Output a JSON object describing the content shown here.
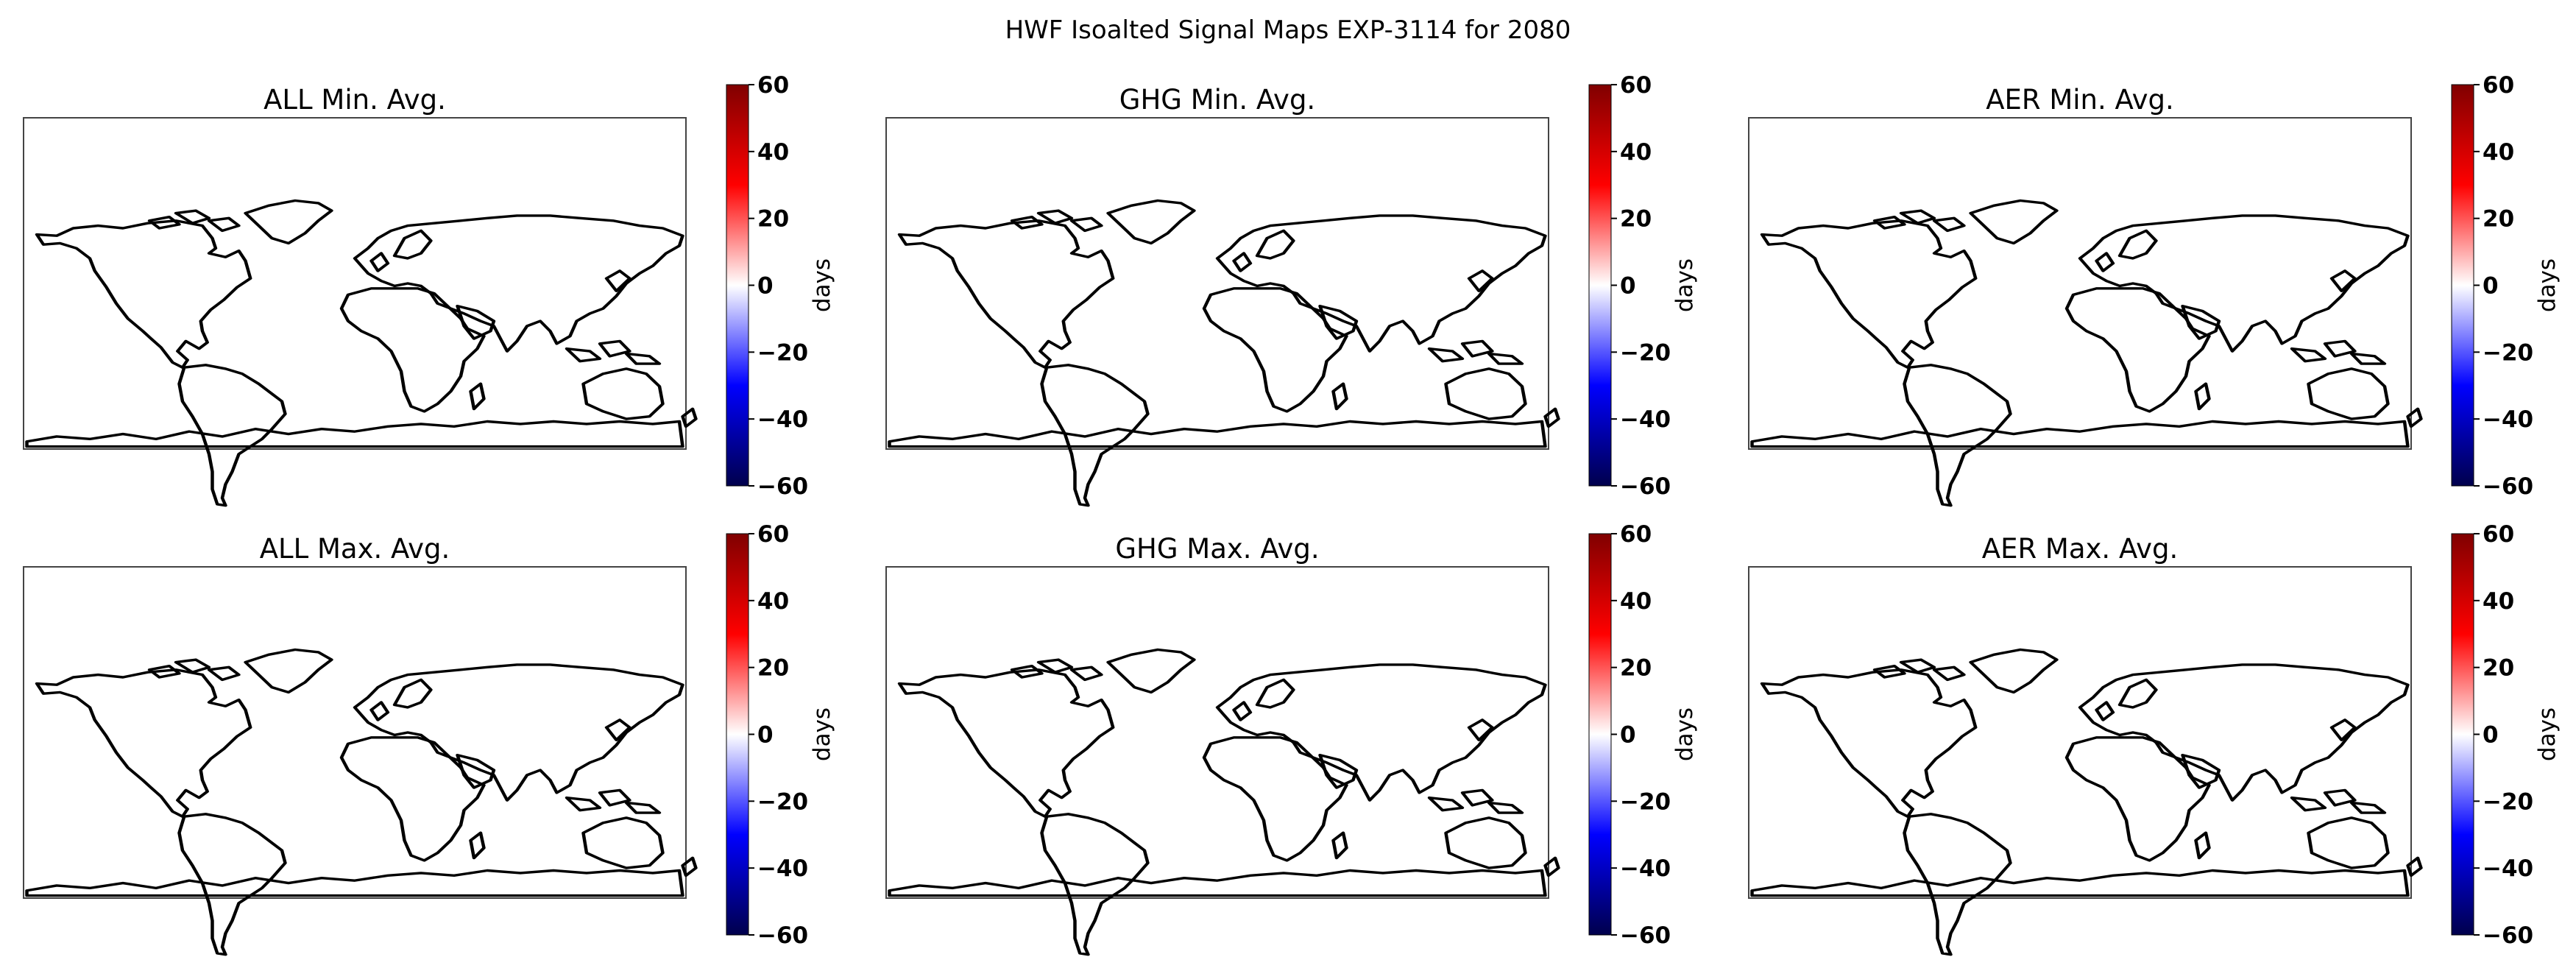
{
  "figure": {
    "title": "HWF Isoalted Signal Maps EXP-3114 for 2080"
  },
  "panels": [
    {
      "title": "ALL Min. Avg.",
      "colorbar_label": "days"
    },
    {
      "title": "GHG Min. Avg.",
      "colorbar_label": "days"
    },
    {
      "title": "AER Min. Avg.",
      "colorbar_label": "days"
    },
    {
      "title": "ALL Max. Avg.",
      "colorbar_label": "days"
    },
    {
      "title": "GHG Max. Avg.",
      "colorbar_label": "days"
    },
    {
      "title": "AER Max. Avg.",
      "colorbar_label": "days"
    }
  ],
  "colorbar": {
    "ticks": [
      "60",
      "40",
      "20",
      "0",
      "−20",
      "−40",
      "−60"
    ],
    "range": [
      -60,
      60
    ],
    "colormap": "seismic",
    "colors": [
      "#00004c",
      "#0000ff",
      "#ffffff",
      "#ff0000",
      "#800000"
    ]
  },
  "map": {
    "projection": "PlateCarree",
    "features": [
      "coastlines"
    ],
    "field_shown": "none"
  }
}
